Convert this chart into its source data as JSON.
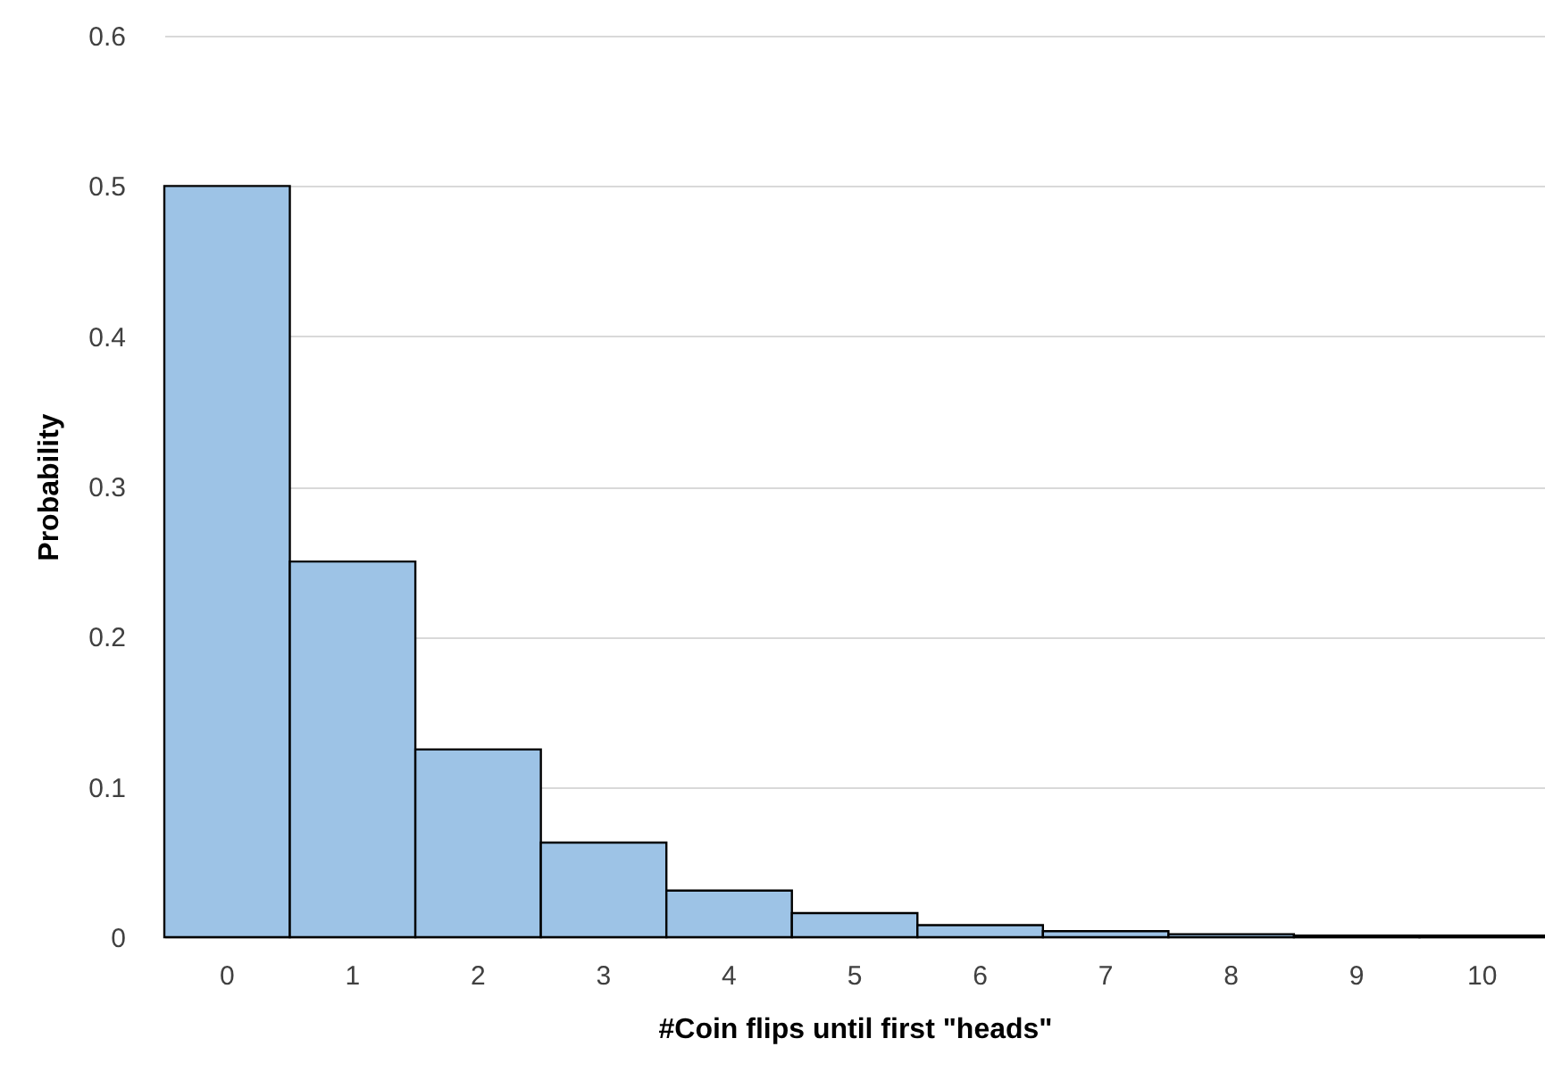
{
  "chart_data": {
    "type": "bar",
    "xlabel": "#Coin flips until first \"heads\"",
    "ylabel": "Probability",
    "categories": [
      "0",
      "1",
      "2",
      "3",
      "4",
      "5",
      "6",
      "7",
      "8",
      "9",
      "10"
    ],
    "values": [
      0.5,
      0.25,
      0.125,
      0.063,
      0.031,
      0.016,
      0.008,
      0.004,
      0.002,
      0.001,
      0.001
    ],
    "color": "#9dc3e6",
    "ylim": [
      0,
      0.6
    ],
    "yticks": [
      0,
      0.1,
      0.2,
      0.3,
      0.4,
      0.5,
      0.6
    ],
    "grid": "y"
  }
}
